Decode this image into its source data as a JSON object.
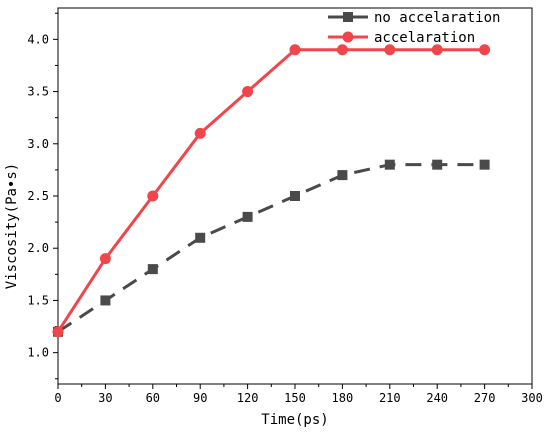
{
  "chart_data": {
    "type": "line",
    "title": "",
    "xlabel": "Time(ps)",
    "ylabel": "Viscosity(Pa•s)",
    "xlim": [
      0,
      300
    ],
    "ylim": [
      0.7,
      4.3
    ],
    "xticks": [
      0,
      30,
      60,
      90,
      120,
      150,
      180,
      210,
      240,
      270,
      300
    ],
    "xtick_labels": [
      "0",
      "30",
      "60",
      "90",
      "120",
      "150",
      "180",
      "210",
      "240",
      "270",
      "300"
    ],
    "yticks": [
      1.0,
      1.5,
      2.0,
      2.5,
      3.0,
      3.5,
      4.0
    ],
    "ytick_labels": [
      "1.0",
      "1.5",
      "2.0",
      "2.5",
      "3.0",
      "3.5",
      "4.0"
    ],
    "grid": false,
    "legend_position": "top-right",
    "series": [
      {
        "name": "no accelaration",
        "color": "#4a4a4a",
        "marker": "square",
        "line_style": "dashed",
        "x": [
          0,
          30,
          60,
          90,
          120,
          150,
          180,
          210,
          240,
          270
        ],
        "y": [
          1.2,
          1.5,
          1.8,
          2.1,
          2.3,
          2.5,
          2.7,
          2.8,
          2.8,
          2.8
        ]
      },
      {
        "name": "accelaration",
        "color": "#f0464b",
        "marker": "circle",
        "line_style": "solid",
        "x": [
          0,
          30,
          60,
          90,
          120,
          150,
          180,
          210,
          240,
          270
        ],
        "y": [
          1.2,
          1.9,
          2.5,
          3.1,
          3.5,
          3.9,
          3.9,
          3.9,
          3.9,
          3.9
        ]
      }
    ]
  }
}
